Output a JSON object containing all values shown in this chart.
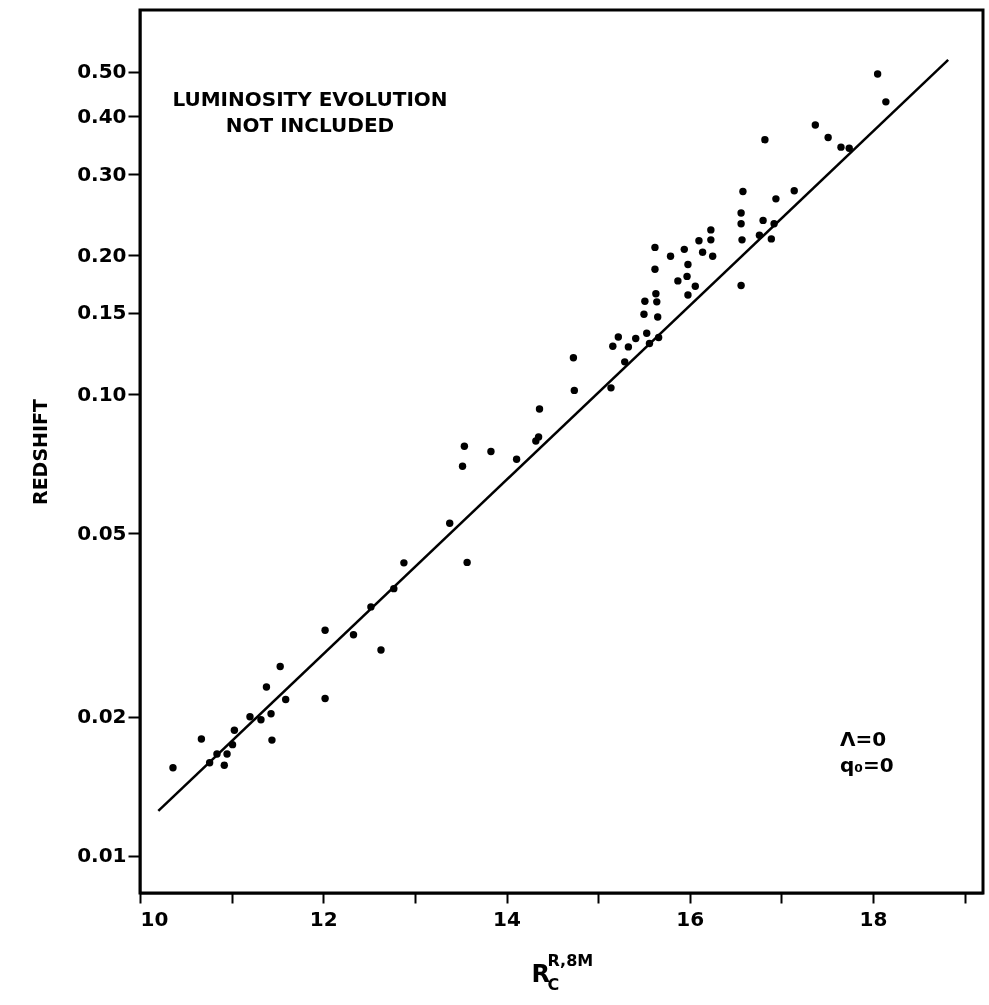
{
  "chart_data": {
    "type": "scatter",
    "xlabel": "R$^{R,8M}$$_{C}$",
    "ylabel": "REDSHIFT",
    "annotations": [
      "LUMINOSITY EVOLUTION\nNOT INCLUDED",
      "Λ=0\nq₀=0"
    ],
    "xlim": [
      10,
      19.2
    ],
    "ylim": [
      0.0083,
      0.68
    ],
    "log": "y",
    "grid": false,
    "xticks": [
      10,
      {
        "value": 11,
        "label": null
      },
      12,
      {
        "value": 13,
        "label": null
      },
      14,
      {
        "value": 15,
        "label": null
      },
      16,
      {
        "value": 17,
        "label": null
      },
      18,
      {
        "value": 19,
        "label": null
      }
    ],
    "yticks": [
      0.01,
      0.02,
      0.05,
      {
        "value": 0.1,
        "label": "0.10"
      },
      0.15,
      {
        "value": 0.2,
        "label": "0.20"
      },
      {
        "value": 0.3,
        "label": "0.30"
      },
      {
        "value": 0.4,
        "label": "0.40"
      },
      {
        "value": 0.5,
        "label": "0.50"
      }
    ],
    "series": [
      {
        "marker": "circle",
        "color": "#000000",
        "x": [
          10.36,
          10.67,
          10.76,
          10.84,
          10.92,
          10.95,
          11.01,
          11.03,
          11.2,
          11.32,
          11.38,
          11.43,
          11.44,
          11.53,
          11.59,
          12.02,
          12.02,
          12.33,
          12.52,
          12.63,
          12.77,
          12.88,
          13.57,
          13.38,
          13.52,
          13.54,
          13.83,
          14.11,
          14.32,
          14.35,
          14.36,
          14.74,
          15.14,
          14.73,
          15.16,
          15.22,
          15.29,
          15.33,
          15.41,
          15.53,
          15.56,
          15.66,
          15.65,
          15.5,
          15.51,
          15.63,
          15.64,
          15.62,
          15.62,
          15.79,
          15.94,
          15.98,
          15.87,
          15.97,
          16.06,
          15.98,
          16.1,
          16.23,
          16.23,
          16.14,
          16.25,
          16.56,
          16.57,
          16.56,
          16.56,
          16.58,
          16.8,
          16.92,
          16.89,
          16.76,
          16.94,
          17.14,
          16.82,
          17.37,
          17.51,
          17.65,
          17.74,
          18.05,
          18.14
        ],
        "values": [
          0.0155,
          0.0179,
          0.0159,
          0.0166,
          0.0157,
          0.0166,
          0.0174,
          0.0187,
          0.02,
          0.0197,
          0.0232,
          0.0203,
          0.0178,
          0.0257,
          0.0218,
          0.0219,
          0.0308,
          0.0301,
          0.0346,
          0.0279,
          0.0379,
          0.0431,
          0.0432,
          0.0525,
          0.0698,
          0.0771,
          0.0751,
          0.0723,
          0.0792,
          0.0808,
          0.0929,
          0.1019,
          0.1032,
          0.1199,
          0.127,
          0.133,
          0.1175,
          0.1266,
          0.132,
          0.1355,
          0.1288,
          0.1327,
          0.147,
          0.149,
          0.159,
          0.165,
          0.1585,
          0.1865,
          0.208,
          0.199,
          0.206,
          0.191,
          0.176,
          0.18,
          0.1713,
          0.164,
          0.215,
          0.227,
          0.216,
          0.203,
          0.199,
          0.172,
          0.216,
          0.234,
          0.247,
          0.275,
          0.238,
          0.234,
          0.217,
          0.221,
          0.265,
          0.276,
          0.356,
          0.383,
          0.36,
          0.343,
          0.341,
          0.494,
          0.43
        ]
      },
      {
        "type": "line",
        "color": "#000000",
        "x": [
          10.2,
          18.82
        ],
        "values": [
          0.0125,
          0.53
        ]
      }
    ]
  }
}
